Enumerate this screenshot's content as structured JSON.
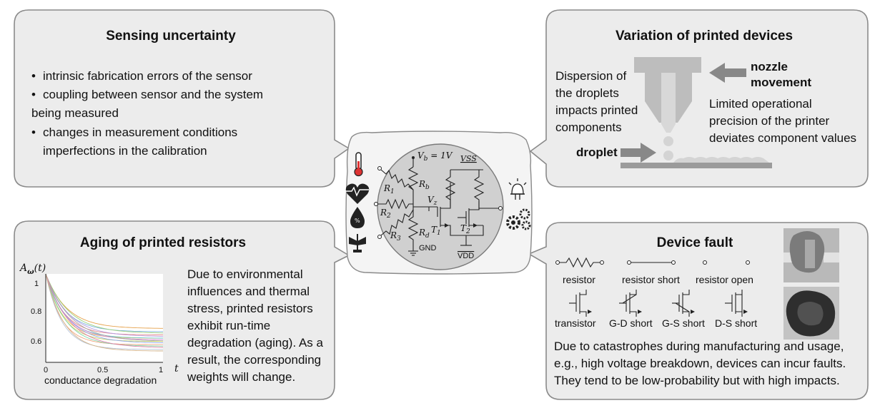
{
  "sensing": {
    "title": "Sensing uncertainty",
    "bullets": [
      "intrinsic fabrication errors of the sensor",
      "coupling between sensor and the system",
      "being measured",
      "changes in measurement conditions",
      "imperfections in the calibration"
    ]
  },
  "variation": {
    "title": "Variation of printed devices",
    "dispersion": [
      "Dispersion of",
      "the droplets",
      "impacts printed",
      "components"
    ],
    "nozzle": [
      "nozzle",
      "movement"
    ],
    "limited": [
      "Limited operational",
      "precision of the printer",
      "deviates component values"
    ],
    "droplet": "droplet"
  },
  "aging": {
    "title": "Aging of printed resistors",
    "text": [
      "Due to environmental",
      "influences and thermal",
      "stress, printed resistors",
      "exhibit run-time",
      "degradation (aging). As a",
      "result, the corresponding",
      "weights will change."
    ],
    "ylabel": "A_ω(t)",
    "xlabel": "conductance degradation",
    "t_label": "t"
  },
  "fault": {
    "title": "Device fault",
    "labels": [
      "resistor",
      "resistor short",
      "resistor open",
      "transistor",
      "G-D short",
      "G-S short",
      "D-S short"
    ],
    "text": [
      "Due to catastrophes during manufacturing and usage,",
      "e.g., high voltage breakdown, devices can incur faults.",
      "They tend to be low-probability but with high impacts."
    ]
  },
  "circuit": {
    "vb": "V_b = 1V",
    "vss": "VSS",
    "vdd": "VDD",
    "gnd": "GND",
    "vz": "V_z",
    "r1": "R_1",
    "r2": "R_2",
    "r3": "R_3",
    "rb": "R_b",
    "rd": "R_d",
    "t1": "T_1",
    "t2": "T_2"
  },
  "chart_data": {
    "type": "line",
    "xlabel": "conductance degradation",
    "ylabel": "A_ω(t)",
    "xlim": [
      0,
      1
    ],
    "ylim": [
      0.45,
      1.0
    ],
    "x_ticks": [
      "0",
      "0.5",
      "1"
    ],
    "y_ticks": [
      "1",
      "0.8",
      "0.6"
    ],
    "series_colors": [
      "#e6a14a",
      "#7fb3e0",
      "#9ad07a",
      "#e58b8b",
      "#b79be0",
      "#f0c85a",
      "#6dc9c9",
      "#d98ad1",
      "#a5a5a5",
      "#c7d36b",
      "#8fa7e8",
      "#f2a37c",
      "#7ed3a6",
      "#e07fa8",
      "#b5c2d6",
      "#d4b48a"
    ],
    "series_asymptotes": [
      0.66,
      0.64,
      0.63,
      0.62,
      0.61,
      0.6,
      0.6,
      0.59,
      0.58,
      0.58,
      0.57,
      0.56,
      0.55,
      0.54,
      0.53,
      0.52
    ],
    "series_rates": [
      5.5,
      6.0,
      5.0,
      6.5,
      5.2,
      7.0,
      6.2,
      5.8,
      4.8,
      6.8,
      5.4,
      7.5,
      6.0,
      5.0,
      7.2,
      6.4
    ]
  }
}
